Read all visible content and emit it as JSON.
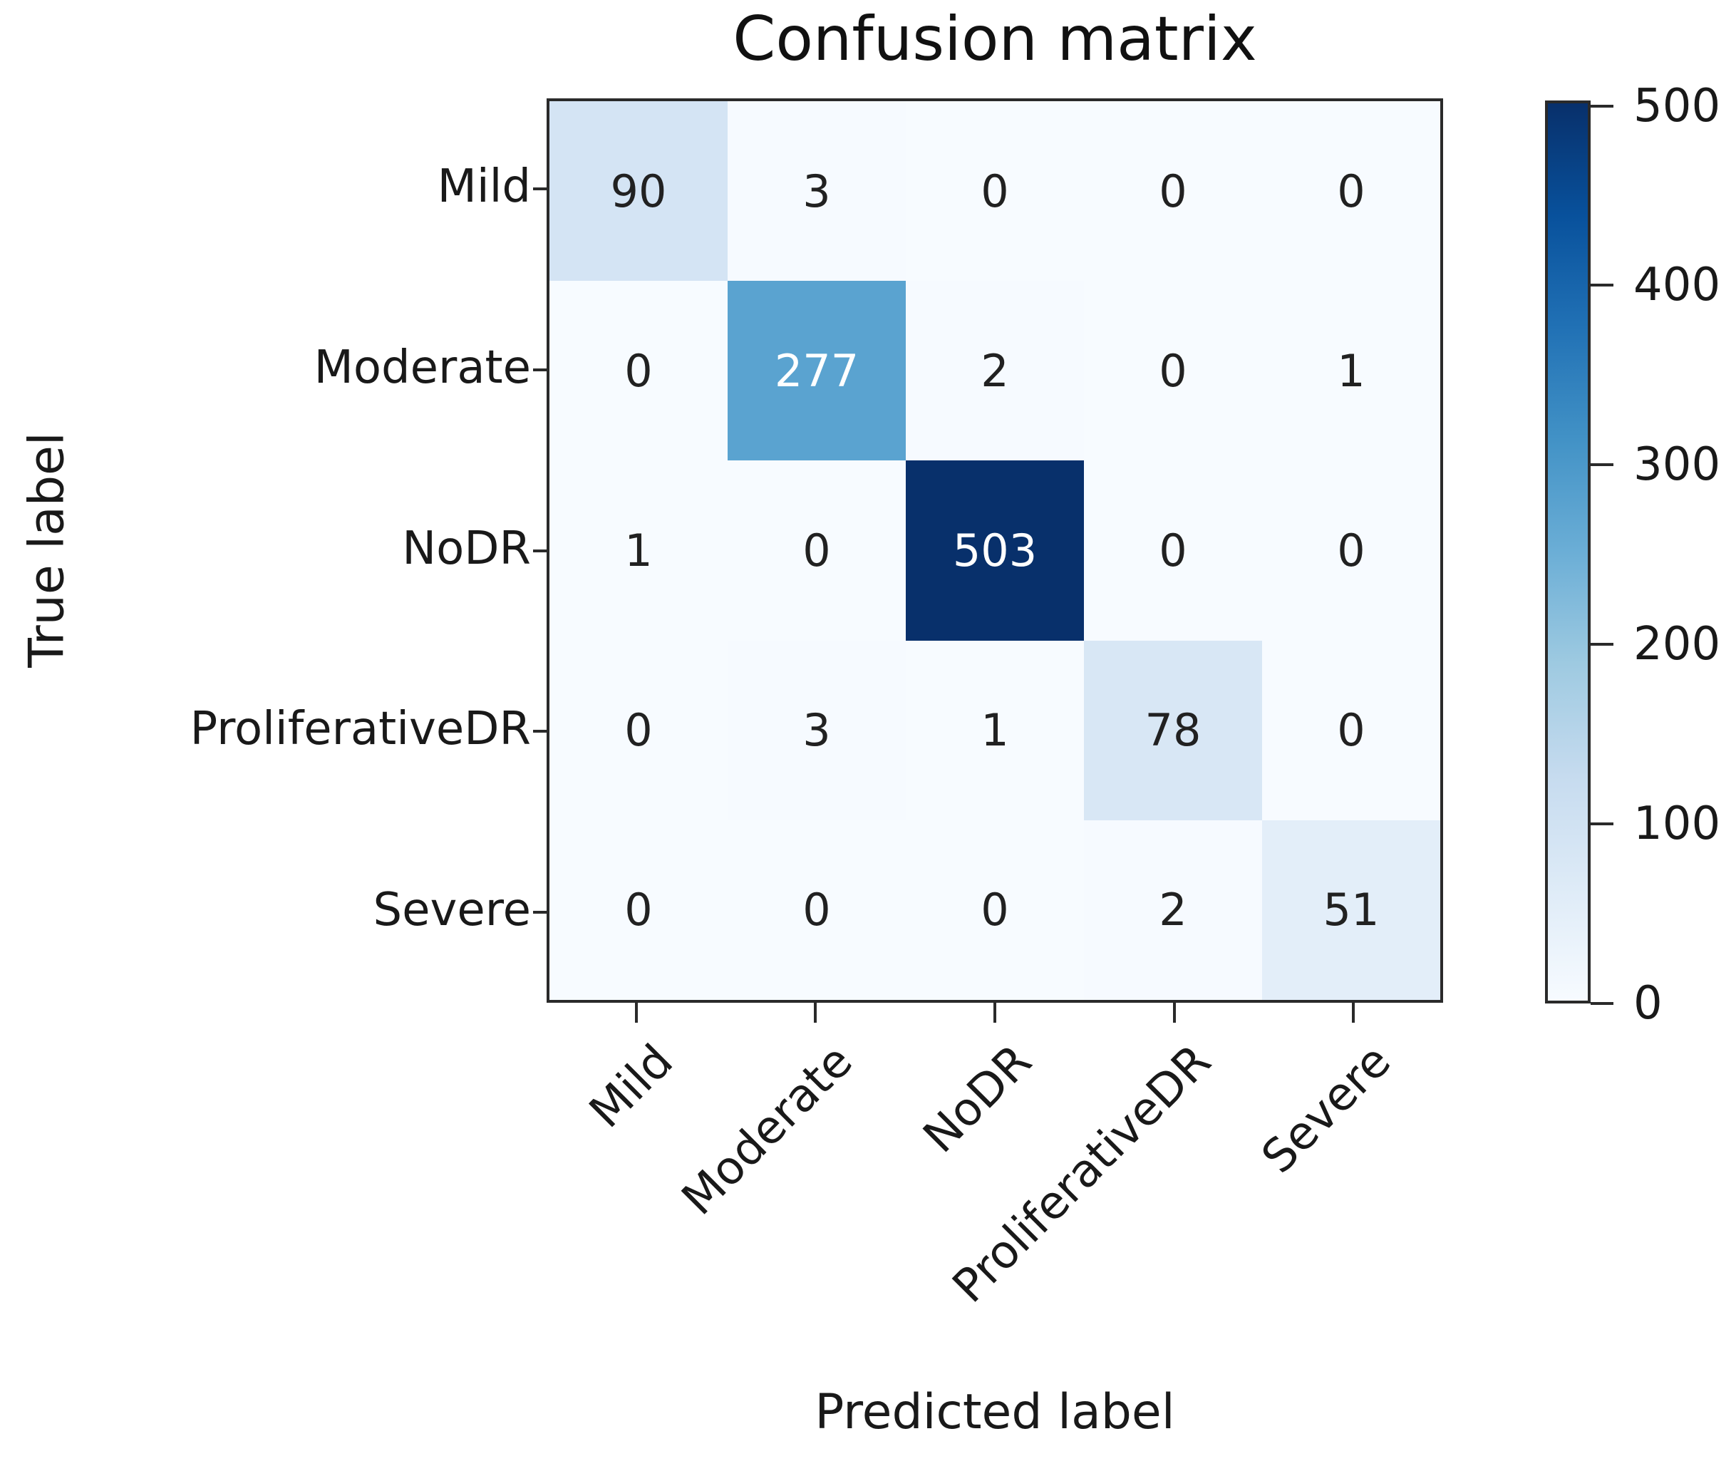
{
  "figure": {
    "background": "#ffffff"
  },
  "chart_data": {
    "type": "heatmap",
    "title": "Confusion matrix",
    "xlabel": "Predicted label",
    "ylabel": "True label",
    "x_categories": [
      "Mild",
      "Moderate",
      "NoDR",
      "ProliferativeDR",
      "Severe"
    ],
    "y_categories": [
      "Mild",
      "Moderate",
      "NoDR",
      "ProliferativeDR",
      "Severe"
    ],
    "matrix": [
      [
        90,
        3,
        0,
        0,
        0
      ],
      [
        0,
        277,
        2,
        0,
        1
      ],
      [
        1,
        0,
        503,
        0,
        0
      ],
      [
        0,
        3,
        1,
        78,
        0
      ],
      [
        0,
        0,
        0,
        2,
        51
      ]
    ],
    "vmin": 0,
    "colormap": "Blues",
    "colormap_anchors": [
      "#f7fbff",
      "#deebf7",
      "#c6dbef",
      "#9ecae1",
      "#6baed6",
      "#4292c6",
      "#2171b5",
      "#08519c",
      "#08306b"
    ],
    "colorbar_ticks": [
      0,
      100,
      200,
      300,
      400,
      500
    ],
    "colorbar_position": "right",
    "x_tick_rotation_deg": 45,
    "grid": false,
    "annotation_color_light_cells": "#212121",
    "annotation_color_dark_cells": "#ffffff",
    "axis_color": "#2a2a2a",
    "text_color": "#191919"
  }
}
